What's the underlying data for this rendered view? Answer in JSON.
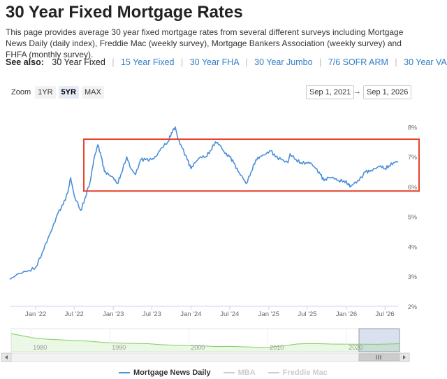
{
  "page": {
    "title": "30 Year Fixed Mortgage Rates",
    "description": "This page provides average 30 year fixed mortgage rates from several different surveys including Mortgage News Daily (daily index), Freddie Mac (weekly survey), Mortgage Bankers Association (weekly survey) and FHFA (monthly survey)."
  },
  "see_also": {
    "label": "See also:",
    "current": "30 Year Fixed",
    "links": [
      "15 Year Fixed",
      "30 Year FHA",
      "30 Year Jumbo",
      "7/6 SOFR ARM",
      "30 Year VA"
    ]
  },
  "zoom": {
    "label": "Zoom",
    "buttons": [
      "1YR",
      "5YR",
      "MAX"
    ],
    "active": "5YR"
  },
  "range": {
    "from": "Sep 1, 2021",
    "arrow": "→",
    "to": "Sep 1, 2026"
  },
  "colors": {
    "series": "#4a90d9",
    "highlight": "#e8412c",
    "navigator": "#7ccf5a",
    "link": "#2f7ec6"
  },
  "chart_data": {
    "type": "line",
    "title": "",
    "xlabel": "",
    "ylabel": "",
    "ylim": [
      2,
      8.5
    ],
    "yticks": [
      "2%",
      "3%",
      "4%",
      "5%",
      "6%",
      "7%",
      "8%"
    ],
    "xticks": [
      "Jan '22",
      "Jul '22",
      "Jan '23",
      "Jul '23",
      "Jan '24",
      "Jul '24",
      "Jan '25",
      "Jul '25",
      "Jan '26",
      "Jul '26"
    ],
    "grid": false,
    "legend_position": "bottom",
    "series": [
      {
        "name": "Mortgage News Daily",
        "x": [
          "2021-09-01",
          "2021-10-15",
          "2021-12-01",
          "2022-01-01",
          "2022-02-01",
          "2022-03-01",
          "2022-03-20",
          "2022-04-15",
          "2022-05-10",
          "2022-06-01",
          "2022-06-14",
          "2022-07-01",
          "2022-08-01",
          "2022-08-20",
          "2022-09-15",
          "2022-10-01",
          "2022-10-20",
          "2022-11-05",
          "2022-11-20",
          "2022-12-10",
          "2023-01-01",
          "2023-01-20",
          "2023-02-05",
          "2023-03-05",
          "2023-03-25",
          "2023-04-15",
          "2023-05-10",
          "2023-06-01",
          "2023-07-01",
          "2023-07-20",
          "2023-08-15",
          "2023-09-15",
          "2023-10-01",
          "2023-10-19",
          "2023-11-01",
          "2023-11-20",
          "2023-12-15",
          "2024-01-01",
          "2024-01-20",
          "2024-02-15",
          "2024-03-10",
          "2024-04-01",
          "2024-04-25",
          "2024-05-15",
          "2024-06-10",
          "2024-07-01",
          "2024-07-20",
          "2024-08-10",
          "2024-09-01",
          "2024-09-17",
          "2024-10-10",
          "2024-11-01",
          "2024-11-20",
          "2024-12-20",
          "2025-01-10",
          "2025-02-01",
          "2025-03-01",
          "2025-04-01",
          "2025-04-11",
          "2025-05-10",
          "2025-06-01",
          "2025-06-25",
          "2025-07-15",
          "2025-08-10",
          "2025-09-01",
          "2025-09-17",
          "2025-10-10",
          "2025-11-01",
          "2025-11-25",
          "2025-12-20",
          "2026-01-10",
          "2026-01-20",
          "2026-02-05",
          "2026-03-01",
          "2026-04-01",
          "2026-04-20",
          "2026-05-15",
          "2026-06-10",
          "2026-07-01",
          "2026-07-20",
          "2026-08-10",
          "2026-09-01"
        ],
        "y": [
          2.9,
          3.1,
          3.2,
          3.3,
          3.8,
          4.3,
          4.6,
          5.1,
          5.4,
          5.8,
          6.3,
          5.7,
          5.2,
          5.6,
          6.2,
          6.9,
          7.4,
          7.0,
          6.5,
          6.4,
          6.3,
          6.1,
          6.4,
          7.0,
          6.6,
          6.4,
          6.9,
          6.9,
          6.9,
          7.0,
          7.3,
          7.5,
          7.8,
          8.0,
          7.6,
          7.3,
          6.9,
          6.6,
          6.8,
          7.0,
          7.0,
          7.2,
          7.5,
          7.4,
          7.1,
          7.0,
          6.8,
          6.5,
          6.3,
          6.1,
          6.5,
          6.9,
          7.0,
          7.1,
          7.2,
          7.0,
          6.9,
          6.8,
          7.1,
          6.9,
          6.8,
          6.8,
          6.8,
          6.6,
          6.4,
          6.2,
          6.3,
          6.3,
          6.2,
          6.2,
          6.1,
          6.0,
          6.1,
          6.2,
          6.5,
          6.5,
          6.6,
          6.7,
          6.6,
          6.7,
          6.8,
          6.85
        ]
      },
      {
        "name": "MBA",
        "values": []
      },
      {
        "name": "Freddie Mac",
        "values": []
      }
    ],
    "navigator": {
      "xticks": [
        "1980",
        "1990",
        "2000",
        "2010",
        "2020"
      ],
      "y": [
        16,
        14,
        12,
        11,
        10.5,
        10,
        9.5,
        9,
        8,
        7.5,
        7.2,
        7,
        6.8,
        6,
        5.5,
        5.2,
        5,
        4.6,
        4.2,
        4.4,
        4,
        3.8,
        3.2,
        4,
        5,
        6.5,
        7,
        6.8,
        6.5,
        6.4,
        6.3,
        6.3,
        6.2,
        6.5,
        6.8
      ]
    },
    "highlight_box": {
      "y_range": [
        5.9,
        7.4
      ]
    }
  }
}
